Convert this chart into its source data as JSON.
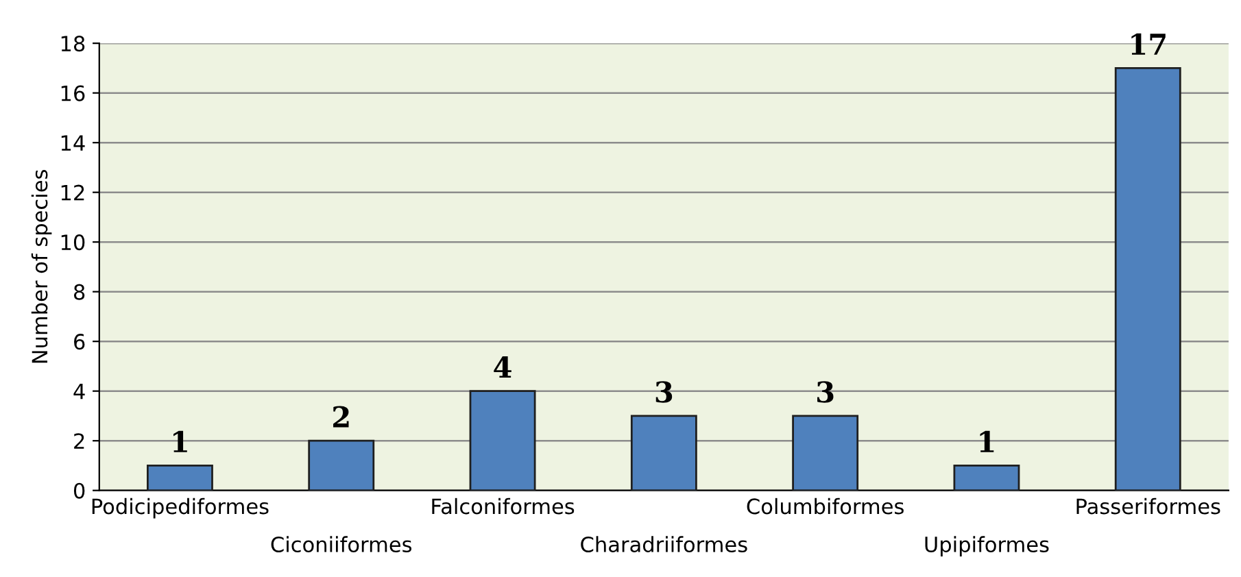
{
  "chart_data": {
    "type": "bar",
    "ylabel": "Number of species",
    "categories": [
      "Podicipediformes",
      "Ciconiiformes",
      "Falconiformes",
      "Charadriiformes",
      "Columbiformes",
      "Upipiformes",
      "Passeriformes"
    ],
    "values": [
      1,
      2,
      4,
      3,
      3,
      1,
      17
    ],
    "color": "#4f81bd",
    "ylim": [
      0,
      18
    ],
    "yticks": [
      0,
      2,
      4,
      6,
      8,
      10,
      12,
      14,
      16,
      18
    ],
    "grid": "y",
    "data_labels": true,
    "legend": false
  }
}
